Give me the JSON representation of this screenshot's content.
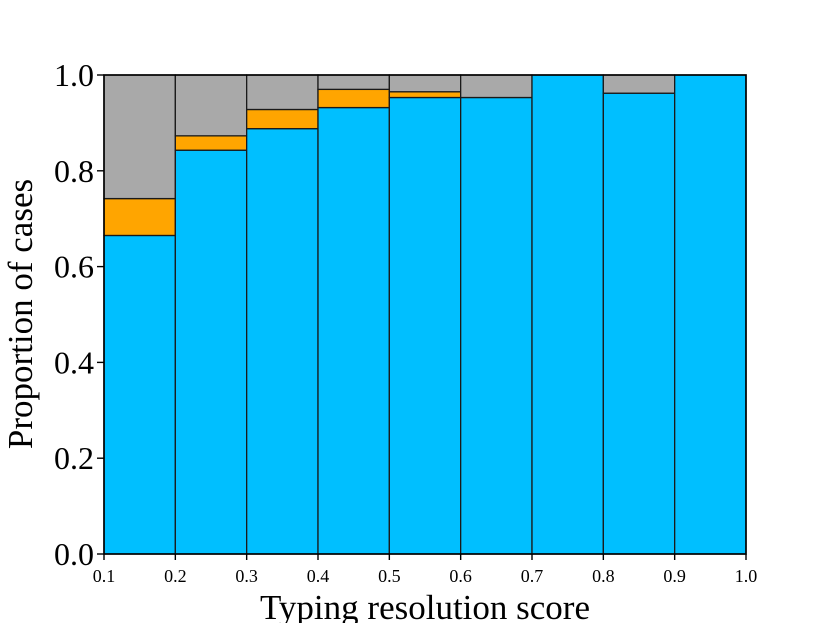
{
  "chart_data": {
    "type": "bar",
    "stacked": true,
    "title": "",
    "xlabel": "Typing resolution score",
    "ylabel": "Proportion of cases",
    "bin_edges": [
      0.1,
      0.2,
      0.3,
      0.4,
      0.5,
      0.6,
      0.7,
      0.8,
      0.9,
      1.0
    ],
    "xlim": [
      0.1,
      1.0
    ],
    "ylim": [
      0.0,
      1.0
    ],
    "xticks": [
      "0.1",
      "0.2",
      "0.3",
      "0.4",
      "0.5",
      "0.6",
      "0.7",
      "0.8",
      "0.9",
      "1.0"
    ],
    "yticks": [
      "0.0",
      "0.2",
      "0.4",
      "0.6",
      "0.8",
      "1.0"
    ],
    "grid": false,
    "series": [
      {
        "color": "#00BFFF",
        "values": [
          0.665,
          0.843,
          0.888,
          0.932,
          0.953,
          0.953,
          1.0,
          0.962,
          1.0
        ]
      },
      {
        "color": "#FFA500",
        "values": [
          0.077,
          0.03,
          0.04,
          0.038,
          0.012,
          0.0,
          0.0,
          0.0,
          0.0
        ]
      },
      {
        "color": "#A9A9A9",
        "values": [
          0.258,
          0.127,
          0.072,
          0.03,
          0.035,
          0.047,
          0.0,
          0.038,
          0.0
        ]
      }
    ]
  }
}
